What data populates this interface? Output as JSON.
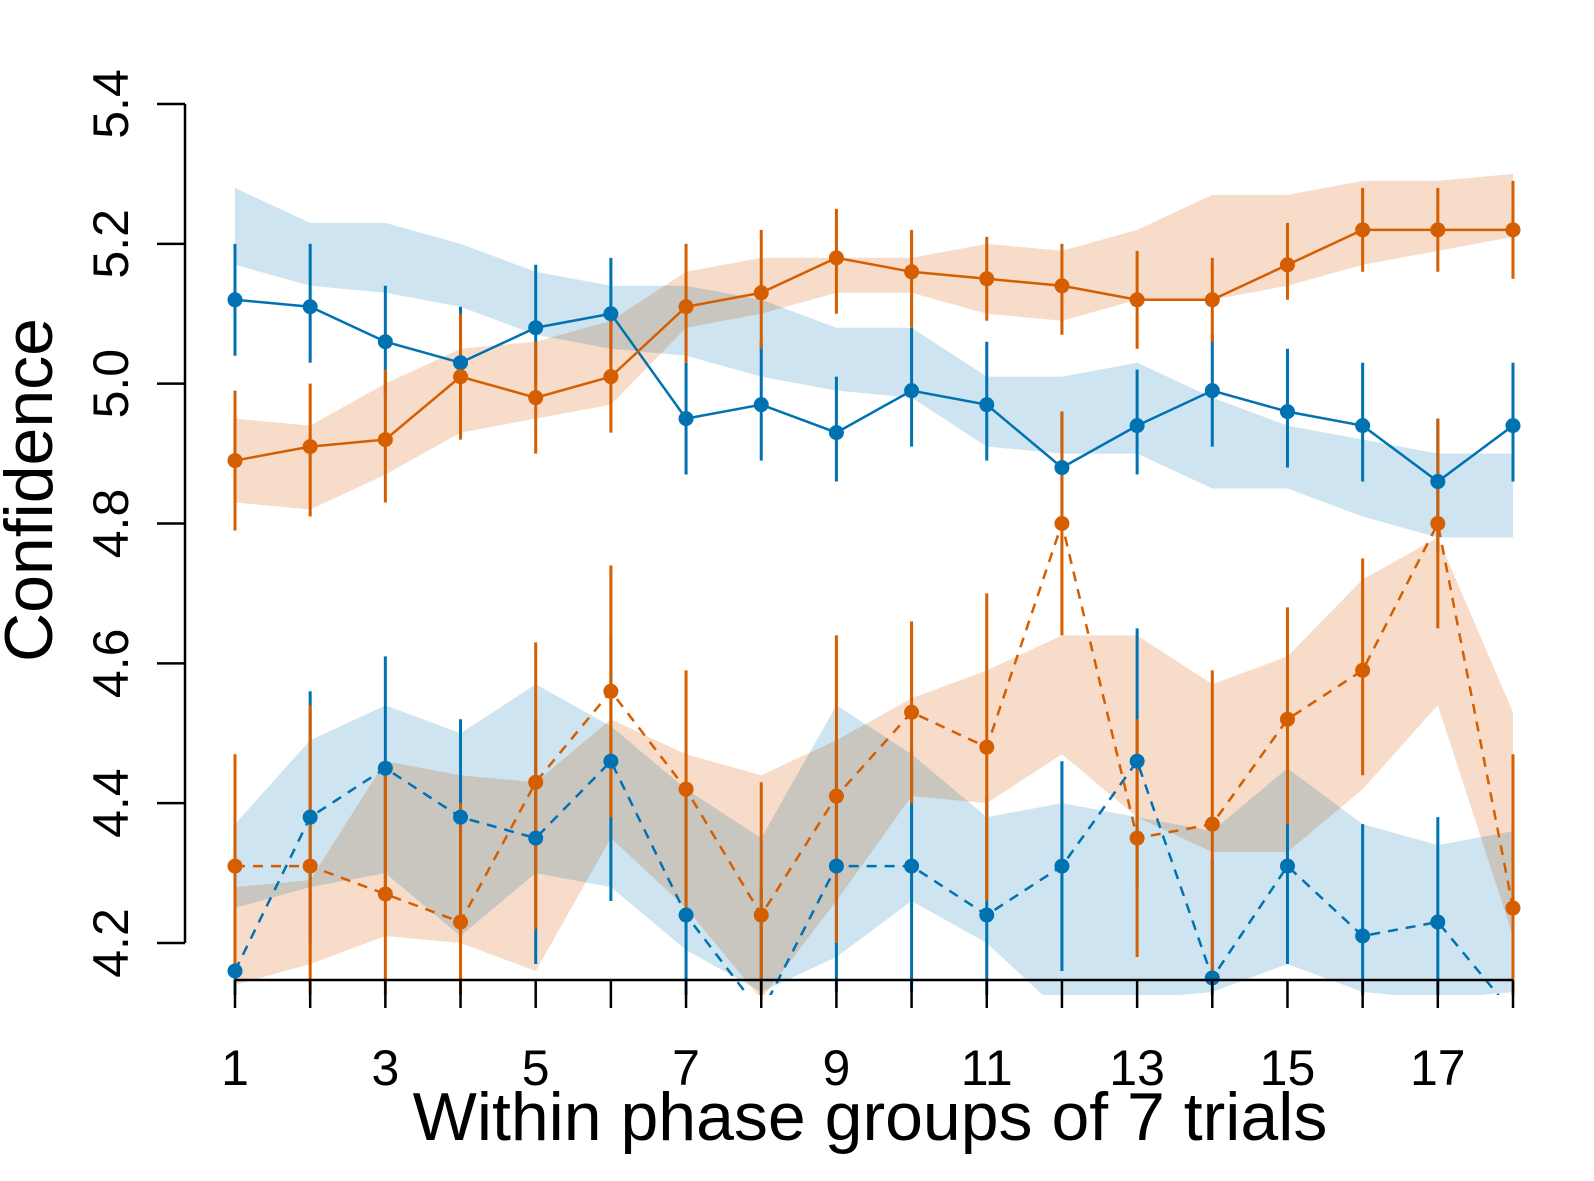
{
  "chart_data": {
    "type": "line",
    "title": "",
    "xlabel": "Within phase groups of 7 trials",
    "ylabel": "Confidence",
    "xlim": [
      1,
      18
    ],
    "ylim": [
      4.15,
      5.4
    ],
    "x": [
      1,
      2,
      3,
      4,
      5,
      6,
      7,
      8,
      9,
      10,
      11,
      12,
      13,
      14,
      15,
      16,
      17,
      18
    ],
    "x_tick_labels": [
      "1",
      "3",
      "5",
      "7",
      "9",
      "11",
      "13",
      "15",
      "17"
    ],
    "x_tick_values": [
      1,
      3,
      5,
      7,
      9,
      11,
      13,
      15,
      17
    ],
    "y_tick_labels": [
      "4.2",
      "4.4",
      "4.6",
      "4.8",
      "5.0",
      "5.2",
      "5.4"
    ],
    "y_tick_values": [
      4.2,
      4.4,
      4.6,
      4.8,
      5.0,
      5.2,
      5.4
    ],
    "grid": false,
    "legend": "none",
    "colors": {
      "blue": "#0072b2",
      "orange": "#d55e00",
      "blue_band": "#c9e2f0",
      "orange_band": "#f6d8c4"
    },
    "series": [
      {
        "color": "blue",
        "line": "solid",
        "values": [
          5.12,
          5.11,
          5.06,
          5.03,
          5.08,
          5.1,
          4.95,
          4.97,
          4.93,
          4.99,
          4.97,
          4.88,
          4.94,
          4.99,
          4.96,
          4.94,
          4.86,
          4.94
        ],
        "err_low": [
          5.04,
          5.03,
          4.98,
          4.96,
          5.0,
          5.03,
          4.87,
          4.89,
          4.86,
          4.91,
          4.89,
          4.79,
          4.87,
          4.91,
          4.88,
          4.86,
          4.76,
          4.86
        ],
        "err_high": [
          5.2,
          5.2,
          5.14,
          5.11,
          5.17,
          5.18,
          5.03,
          5.06,
          5.01,
          5.08,
          5.06,
          4.96,
          5.02,
          5.07,
          5.05,
          5.03,
          4.95,
          5.03
        ],
        "band_low": [
          5.17,
          5.14,
          5.13,
          5.11,
          5.07,
          5.05,
          5.04,
          5.01,
          4.99,
          4.98,
          4.91,
          4.9,
          4.9,
          4.85,
          4.85,
          4.81,
          4.78,
          4.78
        ],
        "band_high": [
          5.28,
          5.23,
          5.23,
          5.2,
          5.16,
          5.14,
          5.14,
          5.12,
          5.08,
          5.08,
          5.01,
          5.01,
          5.03,
          4.98,
          4.94,
          4.92,
          4.9,
          4.9
        ]
      },
      {
        "color": "orange",
        "line": "solid",
        "values": [
          4.89,
          4.91,
          4.92,
          5.01,
          4.98,
          5.01,
          5.11,
          5.13,
          5.18,
          5.16,
          5.15,
          5.14,
          5.12,
          5.12,
          5.17,
          5.22,
          5.22,
          5.22
        ],
        "err_low": [
          4.79,
          4.81,
          4.83,
          4.92,
          4.9,
          4.93,
          5.03,
          5.05,
          5.1,
          5.08,
          5.09,
          5.07,
          5.05,
          5.06,
          5.12,
          5.16,
          5.16,
          5.15
        ],
        "err_high": [
          4.99,
          5.0,
          5.02,
          5.1,
          5.06,
          5.1,
          5.2,
          5.22,
          5.25,
          5.22,
          5.21,
          5.2,
          5.19,
          5.18,
          5.23,
          5.28,
          5.28,
          5.29
        ],
        "band_low": [
          4.83,
          4.82,
          4.87,
          4.93,
          4.95,
          4.97,
          5.08,
          5.1,
          5.13,
          5.13,
          5.1,
          5.09,
          5.12,
          5.12,
          5.14,
          5.17,
          5.19,
          5.21
        ],
        "band_high": [
          4.95,
          4.94,
          5.0,
          5.05,
          5.06,
          5.09,
          5.16,
          5.18,
          5.18,
          5.18,
          5.2,
          5.19,
          5.22,
          5.27,
          5.27,
          5.29,
          5.29,
          5.3
        ]
      },
      {
        "color": "blue",
        "line": "dashed",
        "values": [
          4.16,
          4.38,
          4.45,
          4.38,
          4.35,
          4.46,
          4.24,
          4.1,
          4.31,
          4.31,
          4.24,
          4.31,
          4.46,
          4.15,
          4.31,
          4.21,
          4.23,
          4.1
        ],
        "err_low": [
          4.07,
          4.2,
          4.28,
          4.21,
          4.17,
          4.26,
          4.05,
          3.92,
          4.13,
          4.13,
          4.06,
          4.16,
          4.28,
          3.98,
          4.17,
          4.06,
          4.08,
          3.94
        ],
        "err_high": [
          4.24,
          4.56,
          4.61,
          4.52,
          4.52,
          4.64,
          4.42,
          4.28,
          4.49,
          4.48,
          4.41,
          4.46,
          4.65,
          4.32,
          4.46,
          4.37,
          4.38,
          4.26
        ],
        "band_low": [
          4.25,
          4.28,
          4.3,
          4.21,
          4.3,
          4.28,
          4.19,
          4.13,
          4.18,
          4.26,
          4.2,
          4.1,
          4.12,
          4.13,
          4.17,
          4.13,
          4.12,
          4.13
        ],
        "band_high": [
          4.37,
          4.49,
          4.54,
          4.5,
          4.57,
          4.51,
          4.42,
          4.35,
          4.54,
          4.47,
          4.38,
          4.4,
          4.38,
          4.36,
          4.45,
          4.37,
          4.34,
          4.36
        ]
      },
      {
        "color": "orange",
        "line": "dashed",
        "values": [
          4.31,
          4.31,
          4.27,
          4.23,
          4.43,
          4.56,
          4.42,
          4.24,
          4.41,
          4.53,
          4.48,
          4.8,
          4.35,
          4.37,
          4.52,
          4.59,
          4.8,
          4.25
        ],
        "err_low": [
          4.15,
          4.08,
          4.08,
          4.08,
          4.22,
          4.38,
          4.24,
          4.04,
          4.2,
          4.4,
          4.26,
          4.64,
          4.18,
          4.15,
          4.37,
          4.44,
          4.65,
          4.06
        ],
        "err_high": [
          4.47,
          4.54,
          4.46,
          4.4,
          4.63,
          4.74,
          4.59,
          4.43,
          4.64,
          4.66,
          4.7,
          4.96,
          4.52,
          4.59,
          4.68,
          4.75,
          4.95,
          4.47
        ],
        "band_low": [
          4.14,
          4.17,
          4.21,
          4.2,
          4.16,
          4.35,
          4.25,
          4.12,
          4.26,
          4.41,
          4.4,
          4.47,
          4.38,
          4.33,
          4.33,
          4.42,
          4.54,
          4.21
        ],
        "band_high": [
          4.28,
          4.29,
          4.46,
          4.44,
          4.43,
          4.52,
          4.47,
          4.44,
          4.49,
          4.55,
          4.59,
          4.64,
          4.64,
          4.57,
          4.61,
          4.72,
          4.78,
          4.53
        ]
      }
    ]
  }
}
